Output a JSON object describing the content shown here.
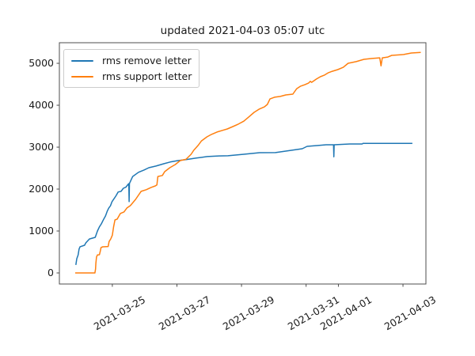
{
  "chart_data": {
    "type": "line",
    "title": "updated 2021-04-03 05:07 utc",
    "xlabel": "",
    "ylabel": "",
    "grid": false,
    "x_axis": {
      "tick_labels": [
        "2021-03-25",
        "2021-03-27",
        "2021-03-29",
        "2021-03-31",
        "2021-04-01",
        "2021-04-03"
      ],
      "tick_positions_days_from_2021_03_25": [
        0,
        2,
        4,
        6,
        7,
        9
      ],
      "xlim_days_from_2021_03_25": [
        -1.64,
        9.71
      ],
      "tick_label_rotation_deg": 30
    },
    "y_axis": {
      "tick_labels": [
        "0",
        "1000",
        "2000",
        "3000",
        "4000",
        "5000"
      ],
      "tick_values": [
        0,
        1000,
        2000,
        3000,
        4000,
        5000
      ],
      "ylim": [
        -264,
        5491
      ]
    },
    "legend": {
      "position": "upper left",
      "entries": [
        {
          "label": "rms remove letter",
          "color": "#1f77b4"
        },
        {
          "label": "rms support letter",
          "color": "#ff7f0e"
        }
      ]
    },
    "series": [
      {
        "name": "rms remove letter",
        "color": "#1f77b4",
        "points": [
          [
            -1.13,
            190
          ],
          [
            -1.1,
            340
          ],
          [
            -1.06,
            430
          ],
          [
            -1.03,
            570
          ],
          [
            -1.0,
            625
          ],
          [
            -0.86,
            660
          ],
          [
            -0.82,
            720
          ],
          [
            -0.71,
            810
          ],
          [
            -0.53,
            850
          ],
          [
            -0.46,
            1000
          ],
          [
            -0.4,
            1100
          ],
          [
            -0.34,
            1170
          ],
          [
            -0.27,
            1280
          ],
          [
            -0.21,
            1360
          ],
          [
            -0.16,
            1470
          ],
          [
            -0.11,
            1550
          ],
          [
            -0.06,
            1600
          ],
          [
            -0.01,
            1700
          ],
          [
            0.07,
            1790
          ],
          [
            0.12,
            1850
          ],
          [
            0.18,
            1930
          ],
          [
            0.27,
            1945
          ],
          [
            0.34,
            2020
          ],
          [
            0.42,
            2045
          ],
          [
            0.49,
            2115
          ],
          [
            0.51,
            2130
          ],
          [
            0.52,
            1700
          ],
          [
            0.53,
            2135
          ],
          [
            0.63,
            2300
          ],
          [
            0.81,
            2400
          ],
          [
            0.98,
            2455
          ],
          [
            1.13,
            2510
          ],
          [
            1.35,
            2550
          ],
          [
            1.59,
            2605
          ],
          [
            1.79,
            2645
          ],
          [
            2.03,
            2680
          ],
          [
            2.28,
            2705
          ],
          [
            2.6,
            2740
          ],
          [
            2.94,
            2775
          ],
          [
            3.3,
            2790
          ],
          [
            3.58,
            2795
          ],
          [
            4.07,
            2830
          ],
          [
            4.56,
            2868
          ],
          [
            5.05,
            2870
          ],
          [
            5.54,
            2925
          ],
          [
            5.88,
            2962
          ],
          [
            6.03,
            3020
          ],
          [
            6.37,
            3040
          ],
          [
            6.62,
            3057
          ],
          [
            6.85,
            3057
          ],
          [
            6.86,
            2770
          ],
          [
            6.87,
            3057
          ],
          [
            7.35,
            3075
          ],
          [
            7.74,
            3075
          ],
          [
            7.76,
            3090
          ],
          [
            9.29,
            3090
          ]
        ]
      },
      {
        "name": "rms support letter",
        "color": "#ff7f0e",
        "points": [
          [
            -1.15,
            0
          ],
          [
            -0.54,
            0
          ],
          [
            -0.52,
            95
          ],
          [
            -0.51,
            230
          ],
          [
            -0.49,
            380
          ],
          [
            -0.46,
            430
          ],
          [
            -0.4,
            435
          ],
          [
            -0.37,
            530
          ],
          [
            -0.35,
            605
          ],
          [
            -0.3,
            623
          ],
          [
            -0.13,
            630
          ],
          [
            -0.1,
            750
          ],
          [
            -0.05,
            811
          ],
          [
            0.0,
            900
          ],
          [
            0.04,
            1100
          ],
          [
            0.08,
            1264
          ],
          [
            0.15,
            1283
          ],
          [
            0.25,
            1420
          ],
          [
            0.36,
            1455
          ],
          [
            0.45,
            1550
          ],
          [
            0.56,
            1605
          ],
          [
            0.72,
            1755
          ],
          [
            0.89,
            1945
          ],
          [
            1.05,
            1985
          ],
          [
            1.2,
            2040
          ],
          [
            1.33,
            2075
          ],
          [
            1.38,
            2100
          ],
          [
            1.41,
            2300
          ],
          [
            1.55,
            2325
          ],
          [
            1.62,
            2415
          ],
          [
            1.78,
            2510
          ],
          [
            1.95,
            2585
          ],
          [
            2.1,
            2680
          ],
          [
            2.28,
            2710
          ],
          [
            2.44,
            2830
          ],
          [
            2.52,
            2925
          ],
          [
            2.59,
            2985
          ],
          [
            2.67,
            3055
          ],
          [
            2.76,
            3150
          ],
          [
            2.93,
            3245
          ],
          [
            3.07,
            3305
          ],
          [
            3.24,
            3360
          ],
          [
            3.41,
            3400
          ],
          [
            3.56,
            3435
          ],
          [
            3.73,
            3490
          ],
          [
            3.9,
            3550
          ],
          [
            4.07,
            3620
          ],
          [
            4.22,
            3715
          ],
          [
            4.39,
            3830
          ],
          [
            4.54,
            3905
          ],
          [
            4.71,
            3960
          ],
          [
            4.8,
            4020
          ],
          [
            4.88,
            4150
          ],
          [
            5.02,
            4190
          ],
          [
            5.2,
            4210
          ],
          [
            5.37,
            4245
          ],
          [
            5.59,
            4265
          ],
          [
            5.71,
            4395
          ],
          [
            5.83,
            4455
          ],
          [
            5.96,
            4490
          ],
          [
            6.08,
            4530
          ],
          [
            6.13,
            4570
          ],
          [
            6.17,
            4545
          ],
          [
            6.32,
            4625
          ],
          [
            6.44,
            4680
          ],
          [
            6.56,
            4715
          ],
          [
            6.69,
            4775
          ],
          [
            6.81,
            4810
          ],
          [
            6.98,
            4850
          ],
          [
            7.15,
            4905
          ],
          [
            7.3,
            5000
          ],
          [
            7.55,
            5040
          ],
          [
            7.79,
            5095
          ],
          [
            8.04,
            5115
          ],
          [
            8.28,
            5130
          ],
          [
            8.32,
            4940
          ],
          [
            8.36,
            5130
          ],
          [
            8.53,
            5150
          ],
          [
            8.65,
            5190
          ],
          [
            9.02,
            5210
          ],
          [
            9.26,
            5245
          ],
          [
            9.55,
            5260
          ]
        ]
      }
    ]
  }
}
